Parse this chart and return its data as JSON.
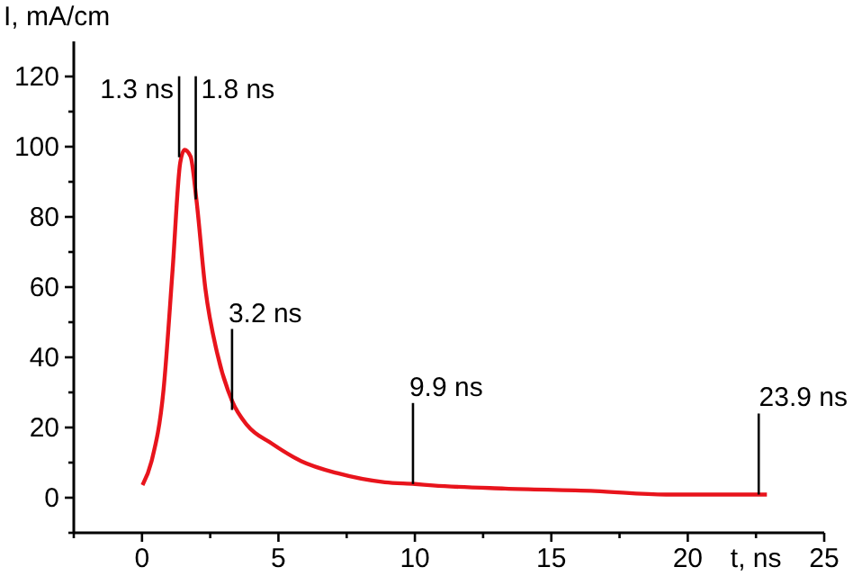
{
  "chart_data": {
    "type": "line",
    "xlabel": "t, ns",
    "ylabel": "I, mA/cm",
    "x": [
      0.02,
      0.35,
      0.79,
      1.12,
      1.4,
      1.56,
      1.78,
      1.99,
      2.32,
      2.76,
      3.31,
      3.86,
      4.74,
      5.84,
      7.15,
      8.9,
      10.0,
      10.66,
      13.3,
      16.6,
      19.2,
      22.9
    ],
    "series": [
      {
        "color": "#e8141c",
        "values": [
          3.6,
          10.4,
          30.8,
          64.8,
          95.4,
          99.1,
          97.2,
          85.2,
          59.7,
          41,
          27.4,
          20.6,
          15.5,
          10.4,
          7,
          4.4,
          3.9,
          3.5,
          2.6,
          1.9,
          0.9,
          0.9
        ]
      }
    ],
    "xlim": [
      -2.5,
      25
    ],
    "ylim": [
      -10,
      130
    ],
    "xticks": [
      {
        "value": -2.5,
        "label": null
      },
      0,
      {
        "value": 2.5,
        "label": null
      },
      5,
      {
        "value": 7.5,
        "label": null
      },
      10,
      {
        "value": 12.5,
        "label": null
      },
      15,
      {
        "value": 17.5,
        "label": null
      },
      20,
      {
        "value": 22.5,
        "label": null
      },
      25
    ],
    "yticks": [
      {
        "value": -10,
        "label": null
      },
      0,
      {
        "value": 10,
        "label": null
      },
      20,
      {
        "value": 30,
        "label": null
      },
      40,
      {
        "value": 50,
        "label": null
      },
      60,
      {
        "value": 70,
        "label": null
      },
      80,
      {
        "value": 90,
        "label": null
      },
      100,
      {
        "value": 110,
        "label": null
      },
      120
    ],
    "annotations": [
      {
        "text": "1.3 ns",
        "x": 1.36,
        "y": 97
      },
      {
        "text": "1.8 ns",
        "x": 1.97,
        "y": 85
      },
      {
        "text": "3.2 ns",
        "x": 3.3,
        "y": 25
      },
      {
        "text": "9.9 ns",
        "x": 9.93,
        "y": 3.9
      },
      {
        "text": "23.9 ns",
        "x": 22.6,
        "y": 0.9
      }
    ],
    "grid": false,
    "marker": "none",
    "line_style": "solid"
  }
}
